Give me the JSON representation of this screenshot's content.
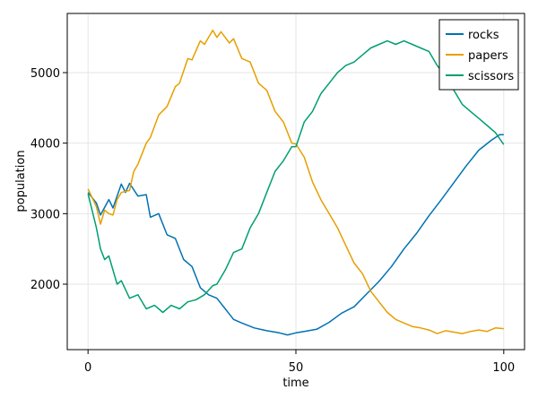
{
  "chart_data": {
    "type": "line",
    "title": "",
    "xlabel": "time",
    "ylabel": "population",
    "xlim": [
      -5,
      105
    ],
    "ylim": [
      1072,
      5839
    ],
    "xticks": [
      0,
      50,
      100
    ],
    "yticks": [
      2000,
      3000,
      4000,
      5000
    ],
    "grid": true,
    "legend": "top-right",
    "series": [
      {
        "name": "rocks",
        "color": "#0072b2",
        "x": [
          0,
          2,
          3,
          5,
          6,
          8,
          9,
          10,
          12,
          14,
          15,
          17,
          19,
          21,
          23,
          25,
          27,
          29,
          31,
          33,
          35,
          37,
          40,
          43,
          46,
          48,
          50,
          52,
          55,
          58,
          61,
          64,
          67,
          70,
          73,
          76,
          79,
          82,
          85,
          88,
          91,
          94,
          97,
          99,
          100
        ],
        "y": [
          3300,
          3150,
          2980,
          3200,
          3080,
          3420,
          3300,
          3430,
          3250,
          3270,
          2950,
          3000,
          2700,
          2650,
          2350,
          2250,
          1950,
          1850,
          1800,
          1650,
          1500,
          1450,
          1380,
          1340,
          1310,
          1280,
          1310,
          1330,
          1360,
          1460,
          1590,
          1680,
          1860,
          2040,
          2250,
          2500,
          2720,
          2970,
          3200,
          3440,
          3680,
          3900,
          4040,
          4120,
          4120
        ]
      },
      {
        "name": "papers",
        "color": "#e69f00",
        "x": [
          0,
          2,
          3,
          4,
          5,
          6,
          7,
          8,
          10,
          11,
          12,
          14,
          15,
          17,
          19,
          21,
          22,
          24,
          25,
          27,
          28,
          30,
          31,
          32,
          34,
          35,
          37,
          39,
          41,
          43,
          45,
          47,
          49,
          50,
          52,
          54,
          56,
          58,
          60,
          62,
          64,
          66,
          68,
          70,
          72,
          74,
          76,
          78,
          80,
          82,
          84,
          86,
          88,
          90,
          92,
          94,
          96,
          98,
          100
        ],
        "y": [
          3350,
          3100,
          2850,
          3050,
          3000,
          2980,
          3200,
          3300,
          3330,
          3600,
          3700,
          4000,
          4080,
          4400,
          4520,
          4800,
          4850,
          5200,
          5180,
          5450,
          5400,
          5600,
          5500,
          5580,
          5420,
          5480,
          5200,
          5150,
          4850,
          4750,
          4450,
          4300,
          4000,
          3990,
          3800,
          3450,
          3200,
          3000,
          2800,
          2550,
          2300,
          2150,
          1900,
          1750,
          1600,
          1500,
          1450,
          1400,
          1380,
          1350,
          1300,
          1340,
          1320,
          1300,
          1330,
          1350,
          1330,
          1380,
          1370
        ]
      },
      {
        "name": "scissors",
        "color": "#009e73",
        "x": [
          0,
          2,
          3,
          4,
          5,
          7,
          8,
          10,
          12,
          14,
          16,
          18,
          20,
          22,
          24,
          26,
          28,
          30,
          31,
          33,
          35,
          37,
          39,
          41,
          43,
          45,
          47,
          49,
          50,
          52,
          54,
          56,
          58,
          60,
          62,
          64,
          66,
          68,
          70,
          72,
          74,
          76,
          78,
          80,
          82,
          84,
          86,
          88,
          90,
          92,
          94,
          96,
          98,
          100
        ],
        "y": [
          3280,
          2800,
          2500,
          2350,
          2400,
          2000,
          2050,
          1800,
          1850,
          1650,
          1700,
          1600,
          1700,
          1650,
          1750,
          1780,
          1850,
          1980,
          2000,
          2200,
          2450,
          2500,
          2800,
          3000,
          3300,
          3600,
          3750,
          3950,
          3950,
          4300,
          4450,
          4700,
          4850,
          5000,
          5100,
          5150,
          5250,
          5350,
          5400,
          5450,
          5400,
          5450,
          5400,
          5350,
          5300,
          5100,
          4950,
          4750,
          4550,
          4450,
          4350,
          4250,
          4150,
          3980
        ]
      }
    ]
  }
}
